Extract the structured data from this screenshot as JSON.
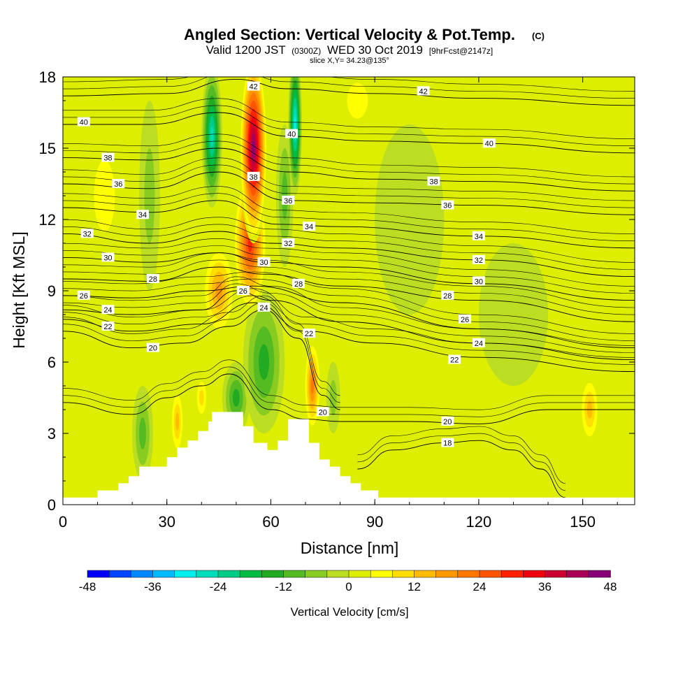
{
  "figure": {
    "title": "Angled Section: Vertical Velocity & Pot.Temp.",
    "title_mark": "(C)",
    "subtitle_parts": [
      "Valid 1200 JST",
      "(0300Z)",
      "WED 30 Oct 2019",
      "[9hrFcst@2147z]"
    ],
    "slice_text": "slice X,Y= 34.23@135°"
  },
  "chart_data": {
    "type": "heatmap",
    "xlabel": "Distance [nm]",
    "ylabel": "Height [Kft MSL]",
    "xlim": [
      0,
      165
    ],
    "ylim": [
      0,
      18
    ],
    "x_ticks": [
      0,
      30,
      60,
      90,
      120,
      150
    ],
    "y_ticks": [
      0,
      3,
      6,
      9,
      12,
      15,
      18
    ],
    "colorbar": {
      "title": "Vertical Velocity [cm/s]",
      "min": -48,
      "max": 48,
      "step": 4,
      "tick_values": [
        -48,
        -36,
        -24,
        -12,
        0,
        12,
        24,
        36,
        48
      ],
      "colors": [
        "#0000ff",
        "#0044ff",
        "#0088ff",
        "#00bbff",
        "#00eeee",
        "#00ddbb",
        "#00cc88",
        "#00bb44",
        "#22aa22",
        "#55bb22",
        "#88cc22",
        "#bbdd22",
        "#ddee00",
        "#ffff00",
        "#ffdd00",
        "#ffbb00",
        "#ff9900",
        "#ff7700",
        "#ff5500",
        "#ff2200",
        "#ee0011",
        "#cc0033",
        "#aa0055",
        "#880077",
        "#660099"
      ]
    },
    "field_features": [
      {
        "x": 55,
        "y": 15,
        "value": 46,
        "dx": 4,
        "dy": 4
      },
      {
        "x": 54,
        "y": 11,
        "value": 32,
        "dx": 5,
        "dy": 3
      },
      {
        "x": 45,
        "y": 9,
        "value": 20,
        "dx": 5,
        "dy": 2
      },
      {
        "x": 43,
        "y": 15.5,
        "value": -28,
        "dx": 3,
        "dy": 3
      },
      {
        "x": 67,
        "y": 16,
        "value": -30,
        "dx": 2,
        "dy": 3
      },
      {
        "x": 64,
        "y": 13,
        "value": -12,
        "dx": 2.5,
        "dy": 3
      },
      {
        "x": 58,
        "y": 6,
        "value": -16,
        "dx": 6,
        "dy": 3
      },
      {
        "x": 50,
        "y": 4.5,
        "value": -14,
        "dx": 4,
        "dy": 1.5
      },
      {
        "x": 72,
        "y": 5,
        "value": 22,
        "dx": 2.5,
        "dy": 2
      },
      {
        "x": 78,
        "y": 4.5,
        "value": -8,
        "dx": 2,
        "dy": 1.5
      },
      {
        "x": 25,
        "y": 13,
        "value": -8,
        "dx": 3,
        "dy": 4
      },
      {
        "x": 23,
        "y": 3,
        "value": -10,
        "dx": 3,
        "dy": 2
      },
      {
        "x": 33,
        "y": 3.5,
        "value": 14,
        "dx": 2,
        "dy": 1.5
      },
      {
        "x": 40,
        "y": 4.5,
        "value": 12,
        "dx": 2,
        "dy": 1
      },
      {
        "x": 152,
        "y": 4,
        "value": 14,
        "dx": 3,
        "dy": 1.5
      },
      {
        "x": 85,
        "y": 17,
        "value": 6,
        "dx": 6,
        "dy": 1.5
      },
      {
        "x": 12,
        "y": 13,
        "value": 6,
        "dx": 6,
        "dy": 3
      },
      {
        "x": 100,
        "y": 12,
        "value": -3,
        "dx": 10,
        "dy": 4
      },
      {
        "x": 130,
        "y": 8,
        "value": -3,
        "dx": 10,
        "dy": 3
      },
      {
        "x": 145,
        "y": 15,
        "value": 5,
        "dx": 12,
        "dy": 3
      }
    ],
    "terrain": [
      [
        0,
        0.3
      ],
      [
        10,
        0.3
      ],
      [
        10,
        0.6
      ],
      [
        16,
        0.6
      ],
      [
        16,
        0.9
      ],
      [
        19,
        0.9
      ],
      [
        19,
        1.2
      ],
      [
        22,
        1.2
      ],
      [
        22,
        1.6
      ],
      [
        30,
        1.6
      ],
      [
        30,
        2.0
      ],
      [
        33,
        2.0
      ],
      [
        33,
        2.4
      ],
      [
        36,
        2.4
      ],
      [
        36,
        2.7
      ],
      [
        39,
        2.7
      ],
      [
        39,
        3.1
      ],
      [
        42,
        3.1
      ],
      [
        42,
        3.5
      ],
      [
        43,
        3.5
      ],
      [
        43,
        3.9
      ],
      [
        52,
        3.9
      ],
      [
        52,
        3.3
      ],
      [
        55,
        3.3
      ],
      [
        55,
        2.6
      ],
      [
        56,
        2.6
      ],
      [
        56,
        2.6
      ],
      [
        59,
        2.6
      ],
      [
        59,
        2.3
      ],
      [
        62,
        2.3
      ],
      [
        62,
        2.7
      ],
      [
        65,
        2.7
      ],
      [
        65,
        3.6
      ],
      [
        71,
        3.6
      ],
      [
        71,
        2.6
      ],
      [
        74,
        2.6
      ],
      [
        74,
        1.9
      ],
      [
        77,
        1.9
      ],
      [
        77,
        1.6
      ],
      [
        80,
        1.6
      ],
      [
        80,
        1.2
      ],
      [
        83,
        1.2
      ],
      [
        83,
        0.9
      ],
      [
        86,
        0.9
      ],
      [
        86,
        0.6
      ],
      [
        91,
        0.6
      ],
      [
        91,
        0.3
      ],
      [
        165,
        0.3
      ]
    ],
    "contours": [
      {
        "label": "18",
        "pts": [
          [
            85,
            1.5
          ],
          [
            95,
            2.3
          ],
          [
            110,
            2.6
          ],
          [
            120,
            2.7
          ],
          [
            130,
            2.3
          ],
          [
            138,
            1.5
          ],
          [
            145,
            0.3
          ]
        ]
      },
      {
        "label": "20",
        "pts": [
          [
            0,
            4.3
          ],
          [
            20,
            3.8
          ],
          [
            30,
            4.5
          ],
          [
            40,
            5
          ],
          [
            48,
            5.5
          ],
          [
            60,
            4
          ],
          [
            70,
            3.6
          ],
          [
            80,
            3.5
          ],
          [
            100,
            3.5
          ],
          [
            120,
            3.4
          ],
          [
            140,
            4
          ],
          [
            165,
            4
          ]
        ]
      },
      {
        "label": "20",
        "pts": [
          [
            0,
            7.3
          ],
          [
            20,
            6.6
          ],
          [
            35,
            6.8
          ],
          [
            48,
            7.5
          ],
          [
            58,
            8.2
          ],
          [
            68,
            7
          ],
          [
            75,
            4.6
          ],
          [
            80,
            4
          ]
        ]
      },
      {
        "label": "22",
        "pts": [
          [
            0,
            7.8
          ],
          [
            20,
            7.3
          ],
          [
            40,
            7.6
          ],
          [
            55,
            8.5
          ],
          [
            70,
            7.3
          ],
          [
            90,
            6.8
          ],
          [
            120,
            6.2
          ],
          [
            165,
            5.6
          ]
        ]
      },
      {
        "label": "24",
        "pts": [
          [
            0,
            8.2
          ],
          [
            20,
            8.0
          ],
          [
            40,
            8.2
          ],
          [
            50,
            9
          ],
          [
            60,
            8.6
          ],
          [
            80,
            7.7
          ],
          [
            120,
            6.8
          ],
          [
            165,
            6.1
          ]
        ]
      },
      {
        "label": "26",
        "pts": [
          [
            0,
            8.8
          ],
          [
            20,
            8.7
          ],
          [
            40,
            9
          ],
          [
            55,
            9.2
          ],
          [
            80,
            8.5
          ],
          [
            120,
            7.4
          ],
          [
            165,
            6.6
          ]
        ]
      },
      {
        "label": "28",
        "pts": [
          [
            0,
            9.5
          ],
          [
            25,
            9.4
          ],
          [
            45,
            10
          ],
          [
            58,
            9.7
          ],
          [
            80,
            9.2
          ],
          [
            120,
            8.6
          ],
          [
            165,
            7.7
          ]
        ]
      },
      {
        "label": "30",
        "pts": [
          [
            0,
            10.4
          ],
          [
            25,
            10.2
          ],
          [
            45,
            10.6
          ],
          [
            58,
            10.2
          ],
          [
            80,
            10
          ],
          [
            120,
            9.3
          ],
          [
            165,
            8.6
          ]
        ]
      },
      {
        "label": "32",
        "pts": [
          [
            0,
            11.4
          ],
          [
            25,
            11
          ],
          [
            45,
            11.5
          ],
          [
            60,
            11
          ],
          [
            80,
            10.8
          ],
          [
            120,
            10.3
          ],
          [
            165,
            9.6
          ]
        ]
      },
      {
        "label": "34",
        "pts": [
          [
            0,
            12.5
          ],
          [
            25,
            12.3
          ],
          [
            45,
            12.8
          ],
          [
            62,
            11.8
          ],
          [
            80,
            11.7
          ],
          [
            120,
            11.3
          ],
          [
            165,
            10.8
          ]
        ]
      },
      {
        "label": "36",
        "pts": [
          [
            0,
            13.5
          ],
          [
            25,
            13.3
          ],
          [
            45,
            14.0
          ],
          [
            65,
            12.8
          ],
          [
            90,
            12.7
          ],
          [
            120,
            12.6
          ],
          [
            165,
            12.2
          ]
        ]
      },
      {
        "label": "38",
        "pts": [
          [
            0,
            14.6
          ],
          [
            25,
            14.5
          ],
          [
            45,
            15.0
          ],
          [
            65,
            14
          ],
          [
            90,
            13.7
          ],
          [
            120,
            13.6
          ],
          [
            165,
            13.2
          ]
        ]
      },
      {
        "label": "40",
        "pts": [
          [
            0,
            16.0
          ],
          [
            25,
            16.0
          ],
          [
            45,
            16.5
          ],
          [
            65,
            15.5
          ],
          [
            90,
            15.3
          ],
          [
            120,
            15.2
          ],
          [
            165,
            14.8
          ]
        ]
      },
      {
        "label": "42",
        "pts": [
          [
            0,
            17.2
          ],
          [
            30,
            17.3
          ],
          [
            50,
            17.9
          ],
          [
            65,
            17.5
          ],
          [
            90,
            17.3
          ],
          [
            120,
            17.1
          ],
          [
            165,
            16.8
          ]
        ]
      }
    ],
    "contour_labels": [
      {
        "text": "42",
        "x": 55,
        "y": 17.6
      },
      {
        "text": "42",
        "x": 104,
        "y": 17.4
      },
      {
        "text": "40",
        "x": 6,
        "y": 16.1
      },
      {
        "text": "40",
        "x": 66,
        "y": 15.6
      },
      {
        "text": "40",
        "x": 123,
        "y": 15.2
      },
      {
        "text": "38",
        "x": 13,
        "y": 14.6
      },
      {
        "text": "38",
        "x": 55,
        "y": 13.8
      },
      {
        "text": "38",
        "x": 107,
        "y": 13.6
      },
      {
        "text": "36",
        "x": 16,
        "y": 13.5
      },
      {
        "text": "36",
        "x": 65,
        "y": 12.8
      },
      {
        "text": "36",
        "x": 111,
        "y": 12.6
      },
      {
        "text": "34",
        "x": 23,
        "y": 12.2
      },
      {
        "text": "34",
        "x": 71,
        "y": 11.7
      },
      {
        "text": "34",
        "x": 120,
        "y": 11.3
      },
      {
        "text": "32",
        "x": 7,
        "y": 11.4
      },
      {
        "text": "32",
        "x": 65,
        "y": 11.0
      },
      {
        "text": "32",
        "x": 120,
        "y": 10.3
      },
      {
        "text": "30",
        "x": 13,
        "y": 10.4
      },
      {
        "text": "30",
        "x": 58,
        "y": 10.2
      },
      {
        "text": "30",
        "x": 120,
        "y": 9.4
      },
      {
        "text": "28",
        "x": 26,
        "y": 9.5
      },
      {
        "text": "28",
        "x": 68,
        "y": 9.3
      },
      {
        "text": "28",
        "x": 111,
        "y": 8.8
      },
      {
        "text": "26",
        "x": 6,
        "y": 8.8
      },
      {
        "text": "26",
        "x": 52,
        "y": 9.0
      },
      {
        "text": "26",
        "x": 116,
        "y": 7.8
      },
      {
        "text": "24",
        "x": 13,
        "y": 8.2
      },
      {
        "text": "24",
        "x": 58,
        "y": 8.3
      },
      {
        "text": "24",
        "x": 120,
        "y": 6.8
      },
      {
        "text": "22",
        "x": 13,
        "y": 7.5
      },
      {
        "text": "22",
        "x": 71,
        "y": 7.2
      },
      {
        "text": "22",
        "x": 113,
        "y": 6.1
      },
      {
        "text": "20",
        "x": 26,
        "y": 6.6
      },
      {
        "text": "20",
        "x": 75,
        "y": 3.9
      },
      {
        "text": "20",
        "x": 111,
        "y": 3.5
      },
      {
        "text": "18",
        "x": 111,
        "y": 2.6
      }
    ]
  }
}
